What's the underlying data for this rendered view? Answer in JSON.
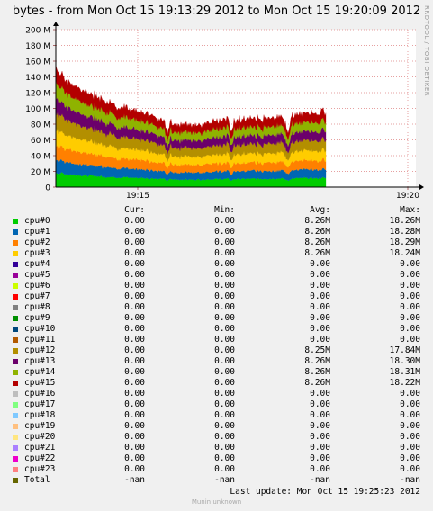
{
  "title": "bytes - from Mon Oct 15 19:13:29 2012 to Mon Oct 15 19:20:09 2012",
  "side_text": "RRDTOOL / TOBI OETIKER",
  "last_update": "Last update:  Mon Oct 15 19:25:23 2012",
  "footer": "Munin unknown",
  "columns": {
    "cur": "Cur:",
    "min": "Min:",
    "avg": "Avg:",
    "max": "Max:"
  },
  "chart_data": {
    "type": "area",
    "stacked": true,
    "y_tick_labels": [
      "0",
      "20 M",
      "40 M",
      "60 M",
      "80 M",
      "100 M",
      "120 M",
      "140 M",
      "160 M",
      "180 M",
      "200 M"
    ],
    "y_ticks": [
      0,
      20,
      40,
      60,
      80,
      100,
      120,
      140,
      160,
      180,
      200
    ],
    "ylim": [
      0,
      200
    ],
    "x_ticks": [
      {
        "label": "19:15",
        "t": 91
      },
      {
        "label": "19:20",
        "t": 391
      }
    ],
    "xlim": [
      0,
      400
    ],
    "grid": true,
    "series": [
      {
        "name": "cpu#0",
        "color": "#00cc00",
        "cur": "0.00",
        "min": "0.00",
        "avg": "8.26M",
        "max": "18.26M"
      },
      {
        "name": "cpu#1",
        "color": "#0066b3",
        "cur": "0.00",
        "min": "0.00",
        "avg": "8.26M",
        "max": "18.28M"
      },
      {
        "name": "cpu#2",
        "color": "#ff8000",
        "cur": "0.00",
        "min": "0.00",
        "avg": "8.26M",
        "max": "18.29M"
      },
      {
        "name": "cpu#3",
        "color": "#ffcc00",
        "cur": "0.00",
        "min": "0.00",
        "avg": "8.26M",
        "max": "18.24M"
      },
      {
        "name": "cpu#4",
        "color": "#330099",
        "cur": "0.00",
        "min": "0.00",
        "avg": "0.00",
        "max": "0.00"
      },
      {
        "name": "cpu#5",
        "color": "#990099",
        "cur": "0.00",
        "min": "0.00",
        "avg": "0.00",
        "max": "0.00"
      },
      {
        "name": "cpu#6",
        "color": "#ccff00",
        "cur": "0.00",
        "min": "0.00",
        "avg": "0.00",
        "max": "0.00"
      },
      {
        "name": "cpu#7",
        "color": "#ff0000",
        "cur": "0.00",
        "min": "0.00",
        "avg": "0.00",
        "max": "0.00"
      },
      {
        "name": "cpu#8",
        "color": "#808080",
        "cur": "0.00",
        "min": "0.00",
        "avg": "0.00",
        "max": "0.00"
      },
      {
        "name": "cpu#9",
        "color": "#008f00",
        "cur": "0.00",
        "min": "0.00",
        "avg": "0.00",
        "max": "0.00"
      },
      {
        "name": "cpu#10",
        "color": "#00487d",
        "cur": "0.00",
        "min": "0.00",
        "avg": "0.00",
        "max": "0.00"
      },
      {
        "name": "cpu#11",
        "color": "#b35a00",
        "cur": "0.00",
        "min": "0.00",
        "avg": "0.00",
        "max": "0.00"
      },
      {
        "name": "cpu#12",
        "color": "#b38f00",
        "cur": "0.00",
        "min": "0.00",
        "avg": "8.25M",
        "max": "17.84M"
      },
      {
        "name": "cpu#13",
        "color": "#6b006b",
        "cur": "0.00",
        "min": "0.00",
        "avg": "8.26M",
        "max": "18.30M"
      },
      {
        "name": "cpu#14",
        "color": "#8fb300",
        "cur": "0.00",
        "min": "0.00",
        "avg": "8.26M",
        "max": "18.31M"
      },
      {
        "name": "cpu#15",
        "color": "#b30000",
        "cur": "0.00",
        "min": "0.00",
        "avg": "8.26M",
        "max": "18.22M"
      },
      {
        "name": "cpu#16",
        "color": "#bebebe",
        "cur": "0.00",
        "min": "0.00",
        "avg": "0.00",
        "max": "0.00"
      },
      {
        "name": "cpu#17",
        "color": "#80ff80",
        "cur": "0.00",
        "min": "0.00",
        "avg": "0.00",
        "max": "0.00"
      },
      {
        "name": "cpu#18",
        "color": "#80c9ff",
        "cur": "0.00",
        "min": "0.00",
        "avg": "0.00",
        "max": "0.00"
      },
      {
        "name": "cpu#19",
        "color": "#ffc080",
        "cur": "0.00",
        "min": "0.00",
        "avg": "0.00",
        "max": "0.00"
      },
      {
        "name": "cpu#20",
        "color": "#ffe680",
        "cur": "0.00",
        "min": "0.00",
        "avg": "0.00",
        "max": "0.00"
      },
      {
        "name": "cpu#21",
        "color": "#aa80ff",
        "cur": "0.00",
        "min": "0.00",
        "avg": "0.00",
        "max": "0.00"
      },
      {
        "name": "cpu#22",
        "color": "#ee00cc",
        "cur": "0.00",
        "min": "0.00",
        "avg": "0.00",
        "max": "0.00"
      },
      {
        "name": "cpu#23",
        "color": "#ff8080",
        "cur": "0.00",
        "min": "0.00",
        "avg": "0.00",
        "max": "0.00"
      },
      {
        "name": "Total",
        "color": "#666600",
        "cur": "-nan",
        "min": "-nan",
        "avg": "-nan",
        "max": "-nan"
      }
    ],
    "stack_profile": [
      [
        0,
        136
      ],
      [
        4,
        128
      ],
      [
        14,
        118
      ],
      [
        30,
        108
      ],
      [
        50,
        98
      ],
      [
        70,
        90
      ],
      [
        90,
        85
      ],
      [
        110,
        79
      ],
      [
        121,
        75
      ],
      [
        124,
        60
      ],
      [
        127,
        74
      ],
      [
        135,
        70
      ],
      [
        145,
        70
      ],
      [
        160,
        70
      ],
      [
        180,
        73
      ],
      [
        192,
        75
      ],
      [
        195,
        58
      ],
      [
        198,
        75
      ],
      [
        215,
        76
      ],
      [
        235,
        78
      ],
      [
        250,
        80
      ],
      [
        258,
        62
      ],
      [
        262,
        80
      ],
      [
        275,
        82
      ],
      [
        280,
        83
      ],
      [
        292,
        82
      ],
      [
        296,
        84
      ],
      [
        300,
        82
      ]
    ],
    "layer_shares": [
      0.14,
      0.13,
      0.14,
      0.15,
      0.16,
      0.14,
      0.14
    ]
  }
}
